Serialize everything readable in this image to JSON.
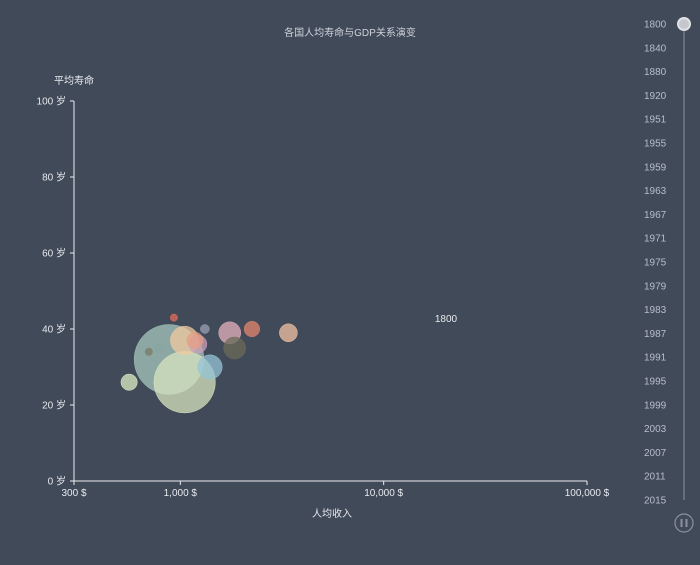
{
  "chart_data": {
    "type": "scatter",
    "title": "各国人均寿命与GDP关系演变",
    "xlabel": "人均收入",
    "ylabel": "平均寿命",
    "x_scale": "log",
    "xlim": [
      300,
      100000
    ],
    "ylim": [
      0,
      100
    ],
    "x_ticks": [
      {
        "value": 300,
        "label": "300 $"
      },
      {
        "value": 1000,
        "label": "1,000 $"
      },
      {
        "value": 10000,
        "label": "10,000 $"
      },
      {
        "value": 100000,
        "label": "100,000 $"
      }
    ],
    "y_ticks": [
      {
        "value": 0,
        "label": "0 岁"
      },
      {
        "value": 20,
        "label": "20 岁"
      },
      {
        "value": 40,
        "label": "40 岁"
      },
      {
        "value": 60,
        "label": "60 岁"
      },
      {
        "value": 80,
        "label": "80 岁"
      },
      {
        "value": 100,
        "label": "100 岁"
      }
    ],
    "current_year_label": "1800",
    "grid": false,
    "points": [
      {
        "x": 880,
        "y": 32,
        "population": 180,
        "color": "#a7c7bd"
      },
      {
        "x": 1050,
        "y": 26,
        "population": 140,
        "color": "#d7e3bf"
      },
      {
        "x": 1050,
        "y": 37,
        "population": 30,
        "color": "#f0c9a0"
      },
      {
        "x": 1400,
        "y": 30,
        "population": 22,
        "color": "#96c4d6"
      },
      {
        "x": 1750,
        "y": 39,
        "population": 18,
        "color": "#e4b0bc"
      },
      {
        "x": 1850,
        "y": 35,
        "population": 18,
        "color": "#6b6b58"
      },
      {
        "x": 1220,
        "y": 36,
        "population": 12,
        "color": "#c9a0b9"
      },
      {
        "x": 1180,
        "y": 37,
        "population": 10,
        "color": "#e69f86"
      },
      {
        "x": 2250,
        "y": 40,
        "population": 9,
        "color": "#e3856b"
      },
      {
        "x": 3400,
        "y": 39,
        "population": 12,
        "color": "#f0c3a4"
      },
      {
        "x": 560,
        "y": 26,
        "population": 10,
        "color": "#dcecc4"
      },
      {
        "x": 930,
        "y": 43,
        "population": 2,
        "color": "#e36d5a"
      },
      {
        "x": 700,
        "y": 34,
        "population": 2,
        "color": "#7a7a66"
      },
      {
        "x": 1320,
        "y": 40,
        "population": 3,
        "color": "#9aa0b5"
      },
      {
        "x": 790,
        "y": 35,
        "population": 3,
        "color": "#8aa6a0"
      }
    ]
  },
  "timeline": {
    "years": [
      "1800",
      "1840",
      "1880",
      "1920",
      "1951",
      "1955",
      "1959",
      "1963",
      "1967",
      "1971",
      "1975",
      "1979",
      "1983",
      "1987",
      "1991",
      "1995",
      "1999",
      "2003",
      "2007",
      "2011",
      "2015"
    ],
    "current_index": 0,
    "play_icon": "pause-icon"
  },
  "colors": {
    "background": "#404a59",
    "axis": "#eeeeee",
    "text": "#cfd3da"
  }
}
